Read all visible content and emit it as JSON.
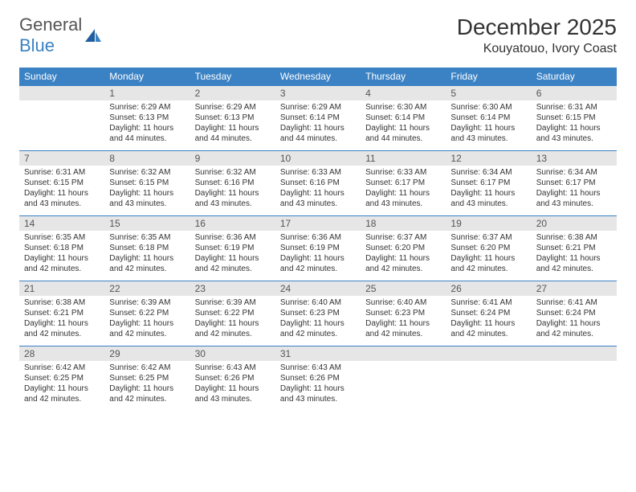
{
  "brand": {
    "part1": "General",
    "part2": "Blue"
  },
  "title": "December 2025",
  "location": "Kouyatouo, Ivory Coast",
  "colors": {
    "accent": "#3b82c4",
    "strip": "#e6e6e6",
    "text": "#333333",
    "logo_gray": "#555555",
    "background": "#ffffff"
  },
  "dow": [
    "Sunday",
    "Monday",
    "Tuesday",
    "Wednesday",
    "Thursday",
    "Friday",
    "Saturday"
  ],
  "weeks": [
    [
      {
        "n": "",
        "sunrise": "",
        "sunset": "",
        "daylight": ""
      },
      {
        "n": "1",
        "sunrise": "Sunrise: 6:29 AM",
        "sunset": "Sunset: 6:13 PM",
        "daylight": "Daylight: 11 hours and 44 minutes."
      },
      {
        "n": "2",
        "sunrise": "Sunrise: 6:29 AM",
        "sunset": "Sunset: 6:13 PM",
        "daylight": "Daylight: 11 hours and 44 minutes."
      },
      {
        "n": "3",
        "sunrise": "Sunrise: 6:29 AM",
        "sunset": "Sunset: 6:14 PM",
        "daylight": "Daylight: 11 hours and 44 minutes."
      },
      {
        "n": "4",
        "sunrise": "Sunrise: 6:30 AM",
        "sunset": "Sunset: 6:14 PM",
        "daylight": "Daylight: 11 hours and 44 minutes."
      },
      {
        "n": "5",
        "sunrise": "Sunrise: 6:30 AM",
        "sunset": "Sunset: 6:14 PM",
        "daylight": "Daylight: 11 hours and 43 minutes."
      },
      {
        "n": "6",
        "sunrise": "Sunrise: 6:31 AM",
        "sunset": "Sunset: 6:15 PM",
        "daylight": "Daylight: 11 hours and 43 minutes."
      }
    ],
    [
      {
        "n": "7",
        "sunrise": "Sunrise: 6:31 AM",
        "sunset": "Sunset: 6:15 PM",
        "daylight": "Daylight: 11 hours and 43 minutes."
      },
      {
        "n": "8",
        "sunrise": "Sunrise: 6:32 AM",
        "sunset": "Sunset: 6:15 PM",
        "daylight": "Daylight: 11 hours and 43 minutes."
      },
      {
        "n": "9",
        "sunrise": "Sunrise: 6:32 AM",
        "sunset": "Sunset: 6:16 PM",
        "daylight": "Daylight: 11 hours and 43 minutes."
      },
      {
        "n": "10",
        "sunrise": "Sunrise: 6:33 AM",
        "sunset": "Sunset: 6:16 PM",
        "daylight": "Daylight: 11 hours and 43 minutes."
      },
      {
        "n": "11",
        "sunrise": "Sunrise: 6:33 AM",
        "sunset": "Sunset: 6:17 PM",
        "daylight": "Daylight: 11 hours and 43 minutes."
      },
      {
        "n": "12",
        "sunrise": "Sunrise: 6:34 AM",
        "sunset": "Sunset: 6:17 PM",
        "daylight": "Daylight: 11 hours and 43 minutes."
      },
      {
        "n": "13",
        "sunrise": "Sunrise: 6:34 AM",
        "sunset": "Sunset: 6:17 PM",
        "daylight": "Daylight: 11 hours and 43 minutes."
      }
    ],
    [
      {
        "n": "14",
        "sunrise": "Sunrise: 6:35 AM",
        "sunset": "Sunset: 6:18 PM",
        "daylight": "Daylight: 11 hours and 42 minutes."
      },
      {
        "n": "15",
        "sunrise": "Sunrise: 6:35 AM",
        "sunset": "Sunset: 6:18 PM",
        "daylight": "Daylight: 11 hours and 42 minutes."
      },
      {
        "n": "16",
        "sunrise": "Sunrise: 6:36 AM",
        "sunset": "Sunset: 6:19 PM",
        "daylight": "Daylight: 11 hours and 42 minutes."
      },
      {
        "n": "17",
        "sunrise": "Sunrise: 6:36 AM",
        "sunset": "Sunset: 6:19 PM",
        "daylight": "Daylight: 11 hours and 42 minutes."
      },
      {
        "n": "18",
        "sunrise": "Sunrise: 6:37 AM",
        "sunset": "Sunset: 6:20 PM",
        "daylight": "Daylight: 11 hours and 42 minutes."
      },
      {
        "n": "19",
        "sunrise": "Sunrise: 6:37 AM",
        "sunset": "Sunset: 6:20 PM",
        "daylight": "Daylight: 11 hours and 42 minutes."
      },
      {
        "n": "20",
        "sunrise": "Sunrise: 6:38 AM",
        "sunset": "Sunset: 6:21 PM",
        "daylight": "Daylight: 11 hours and 42 minutes."
      }
    ],
    [
      {
        "n": "21",
        "sunrise": "Sunrise: 6:38 AM",
        "sunset": "Sunset: 6:21 PM",
        "daylight": "Daylight: 11 hours and 42 minutes."
      },
      {
        "n": "22",
        "sunrise": "Sunrise: 6:39 AM",
        "sunset": "Sunset: 6:22 PM",
        "daylight": "Daylight: 11 hours and 42 minutes."
      },
      {
        "n": "23",
        "sunrise": "Sunrise: 6:39 AM",
        "sunset": "Sunset: 6:22 PM",
        "daylight": "Daylight: 11 hours and 42 minutes."
      },
      {
        "n": "24",
        "sunrise": "Sunrise: 6:40 AM",
        "sunset": "Sunset: 6:23 PM",
        "daylight": "Daylight: 11 hours and 42 minutes."
      },
      {
        "n": "25",
        "sunrise": "Sunrise: 6:40 AM",
        "sunset": "Sunset: 6:23 PM",
        "daylight": "Daylight: 11 hours and 42 minutes."
      },
      {
        "n": "26",
        "sunrise": "Sunrise: 6:41 AM",
        "sunset": "Sunset: 6:24 PM",
        "daylight": "Daylight: 11 hours and 42 minutes."
      },
      {
        "n": "27",
        "sunrise": "Sunrise: 6:41 AM",
        "sunset": "Sunset: 6:24 PM",
        "daylight": "Daylight: 11 hours and 42 minutes."
      }
    ],
    [
      {
        "n": "28",
        "sunrise": "Sunrise: 6:42 AM",
        "sunset": "Sunset: 6:25 PM",
        "daylight": "Daylight: 11 hours and 42 minutes."
      },
      {
        "n": "29",
        "sunrise": "Sunrise: 6:42 AM",
        "sunset": "Sunset: 6:25 PM",
        "daylight": "Daylight: 11 hours and 42 minutes."
      },
      {
        "n": "30",
        "sunrise": "Sunrise: 6:43 AM",
        "sunset": "Sunset: 6:26 PM",
        "daylight": "Daylight: 11 hours and 43 minutes."
      },
      {
        "n": "31",
        "sunrise": "Sunrise: 6:43 AM",
        "sunset": "Sunset: 6:26 PM",
        "daylight": "Daylight: 11 hours and 43 minutes."
      },
      {
        "n": "",
        "sunrise": "",
        "sunset": "",
        "daylight": ""
      },
      {
        "n": "",
        "sunrise": "",
        "sunset": "",
        "daylight": ""
      },
      {
        "n": "",
        "sunrise": "",
        "sunset": "",
        "daylight": ""
      }
    ]
  ]
}
